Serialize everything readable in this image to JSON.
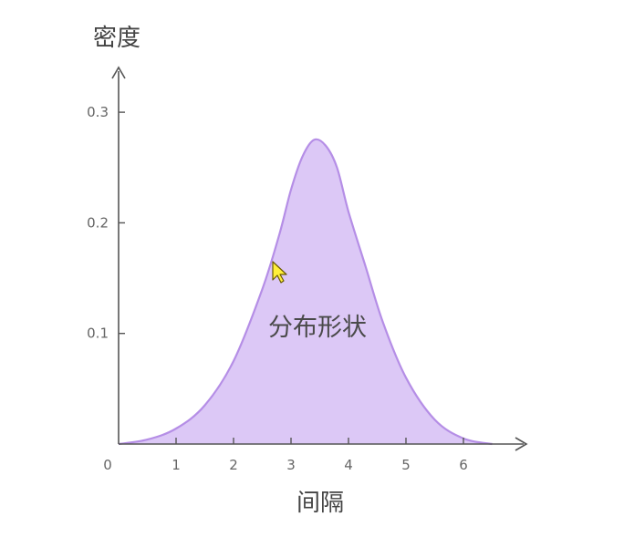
{
  "chart_data": {
    "type": "area",
    "title": "",
    "xlabel": "间隔",
    "ylabel": "密度",
    "xlim": [
      0,
      6.8
    ],
    "ylim": [
      0,
      0.32
    ],
    "xticks": [
      "0",
      "1",
      "2",
      "3",
      "4",
      "5",
      "6"
    ],
    "yticks": [
      "0.1",
      "0.2",
      "0.3"
    ],
    "annotation": "分布形状",
    "grid": false,
    "series": [
      {
        "x": [
          0,
          0.5,
          1,
          1.5,
          2,
          2.5,
          2.8,
          3,
          3.2,
          3.4,
          3.6,
          3.8,
          4,
          4.3,
          4.6,
          5,
          5.5,
          6,
          6.5
        ],
        "values": [
          0,
          0.004,
          0.014,
          0.035,
          0.075,
          0.14,
          0.19,
          0.23,
          0.26,
          0.275,
          0.27,
          0.25,
          0.21,
          0.16,
          0.11,
          0.06,
          0.022,
          0.005,
          0
        ]
      }
    ],
    "colors": {
      "fill": "#dcc8f6",
      "stroke": "#b58ee6",
      "axis": "#555555"
    }
  },
  "overlay": {
    "cursor_icon": "mouse-pointer-icon"
  }
}
